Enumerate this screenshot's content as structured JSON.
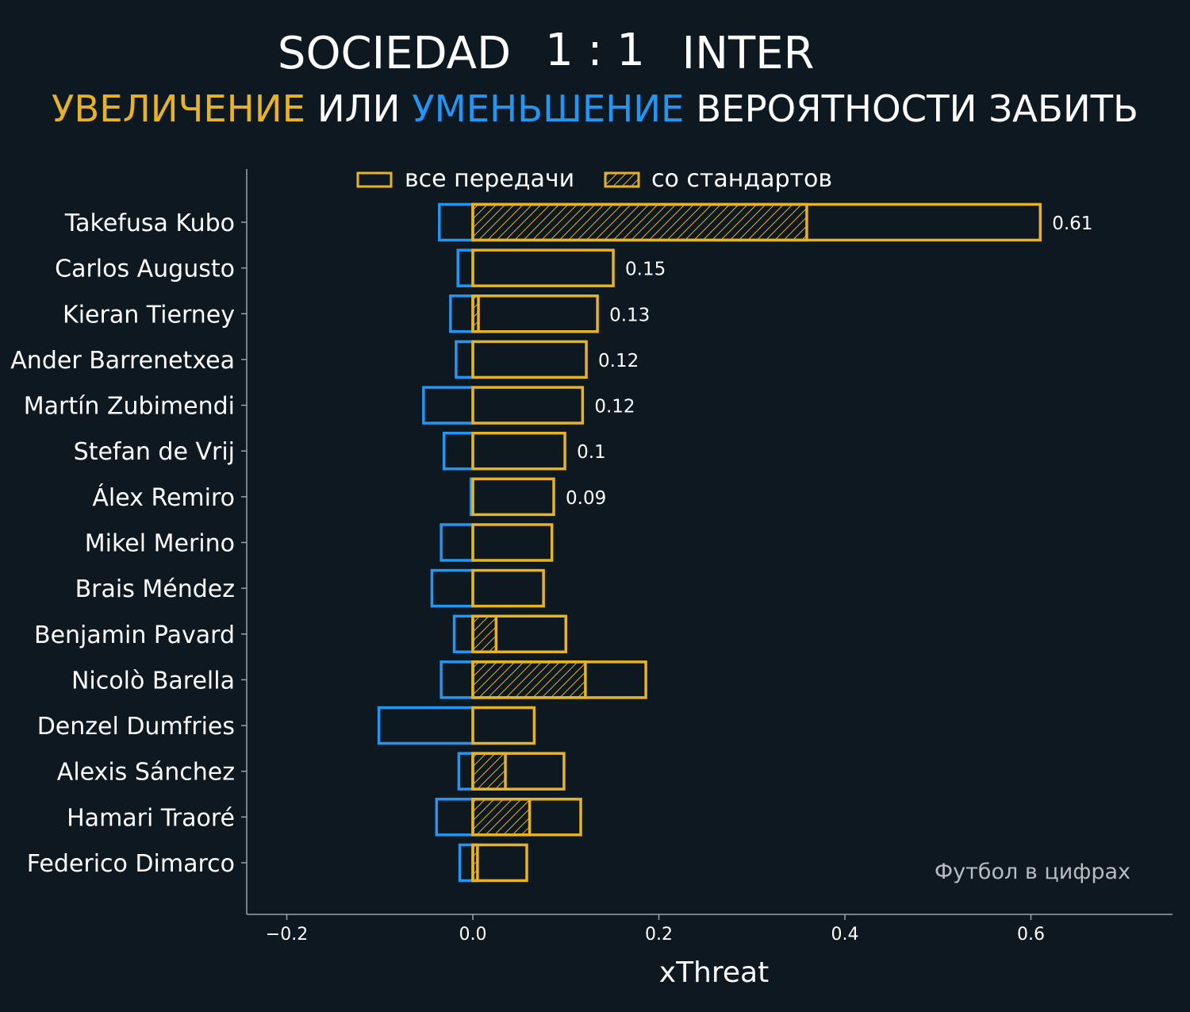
{
  "header": {
    "title_left": "SOCIEDAD",
    "title_score": "1 : 1",
    "title_right": "INTER",
    "subtitle_part1": "УВЕЛИЧЕНИЕ",
    "subtitle_part2": " ИЛИ ",
    "subtitle_part3": "УМЕНЬШЕНИЕ",
    "subtitle_part4": " ВЕРОЯТНОСТИ ЗАБИТЬ"
  },
  "colors": {
    "background": "#0e1821",
    "positive": "#e6b325",
    "negative": "#2196f3",
    "axis": "#9aa3ab",
    "text": "#ffffff"
  },
  "legend": {
    "all_passes": "все передачи",
    "set_pieces": "со стандартов"
  },
  "watermark": "Футбол в цифрах",
  "chart_data": {
    "type": "bar",
    "orientation": "horizontal",
    "xlabel": "xThreat",
    "xlim": [
      -0.24,
      0.75
    ],
    "xticks": [
      -0.2,
      0.0,
      0.2,
      0.4,
      0.6
    ],
    "xtick_labels": [
      "−0.2",
      "0.0",
      "0.2",
      "0.4",
      "0.6"
    ],
    "categories": [
      "Takefusa Kubo",
      "Carlos Augusto",
      "Kieran Tierney",
      "Ander Barrenetxea",
      "Martín Zubimendi",
      "Stefan de Vrij",
      "Álex Remiro",
      "Mikel Merino",
      "Brais Méndez",
      "Benjamin Pavard",
      "Nicolò Barella",
      "Denzel Dumfries",
      "Alexis Sánchez",
      "Hamari Traoré",
      "Federico Dimarco"
    ],
    "series": [
      {
        "name": "все передачи",
        "positive": [
          0.61,
          0.151,
          0.134,
          0.122,
          0.118,
          0.099,
          0.087,
          0.085,
          0.076,
          0.1,
          0.186,
          0.066,
          0.098,
          0.116,
          0.058
        ],
        "negative": [
          -0.036,
          -0.016,
          -0.024,
          -0.018,
          -0.053,
          -0.031,
          -0.002,
          -0.034,
          -0.044,
          -0.02,
          -0.034,
          -0.101,
          -0.015,
          -0.039,
          -0.014
        ]
      },
      {
        "name": "со стандартов",
        "values": [
          0.359,
          0.0,
          0.006,
          0.0,
          0.0,
          0.0,
          0.0,
          0.0,
          0.0,
          0.025,
          0.121,
          0.0,
          0.035,
          0.061,
          0.005
        ]
      }
    ],
    "value_labels": [
      "0.61",
      "0.15",
      "0.13",
      "0.12",
      "0.12",
      "0.1",
      "0.09",
      "",
      "",
      "",
      "",
      "",
      "",
      "",
      ""
    ],
    "legend_position": "top-center",
    "grid": false
  }
}
